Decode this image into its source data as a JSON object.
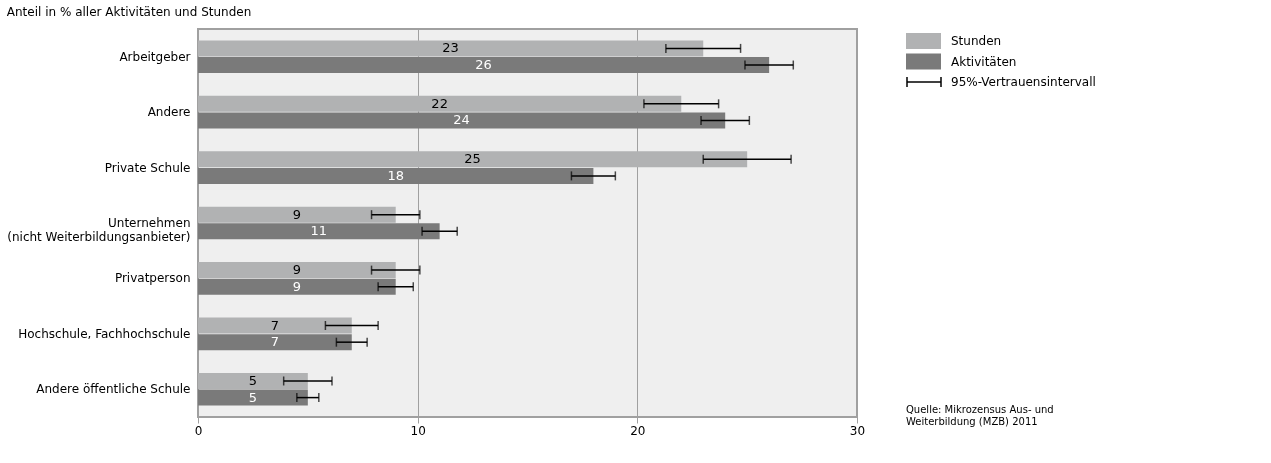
{
  "chart_data": {
    "type": "bar",
    "orientation": "horizontal",
    "title": "Anteil in % aller Aktivitäten und Stunden",
    "categories": [
      "Arbeitgeber",
      "Andere",
      "Private Schule",
      "Unternehmen\n(nicht Weiterbildungsanbieter)",
      "Privatperson",
      "Hochschule, Fachhochschule",
      "Andere öffentliche Schule"
    ],
    "series": [
      {
        "name": "Stunden",
        "color": "#b1b2b3",
        "values": [
          23,
          22,
          25,
          9,
          9,
          7,
          5
        ],
        "errors": [
          [
            21.3,
            24.7
          ],
          [
            20.3,
            23.7
          ],
          [
            23.0,
            27.0
          ],
          [
            7.9,
            10.1
          ],
          [
            7.9,
            10.1
          ],
          [
            5.8,
            8.2
          ],
          [
            3.9,
            6.1
          ]
        ]
      },
      {
        "name": "Aktivitäten",
        "color": "#7a7a7a",
        "values": [
          26,
          24,
          18,
          11,
          9,
          7,
          5
        ],
        "errors": [
          [
            24.9,
            27.1
          ],
          [
            22.9,
            25.1
          ],
          [
            17.0,
            19.0
          ],
          [
            10.2,
            11.8
          ],
          [
            8.2,
            9.8
          ],
          [
            6.3,
            7.7
          ],
          [
            4.5,
            5.5
          ]
        ]
      }
    ],
    "xlim": [
      0,
      30
    ],
    "xticks": [
      0,
      10,
      20,
      30
    ],
    "grid": "x",
    "legend": "right",
    "data_labels": true,
    "annotations": [
      "95%-Vertrauensintervall",
      "Quelle: Mikrozensus Aus- und\nWeiterbildung (MZB) 2011"
    ]
  }
}
